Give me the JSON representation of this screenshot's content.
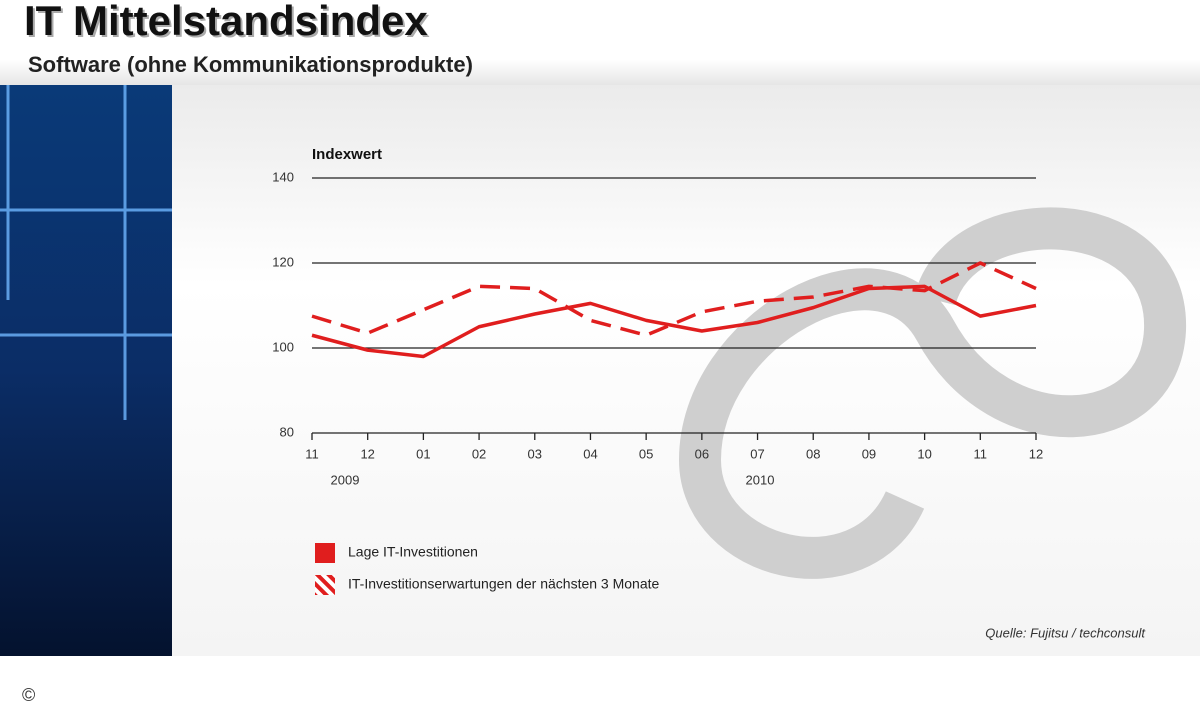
{
  "header": {
    "title": "IT Mittelstandsindex",
    "subtitle": "Software (ohne Kommunikationsprodukte)",
    "copyright": "©"
  },
  "chart_data": {
    "type": "line",
    "y_label": "Indexwert",
    "categories": [
      "11",
      "12",
      "01",
      "02",
      "03",
      "04",
      "05",
      "06",
      "07",
      "08",
      "09",
      "10",
      "11",
      "12"
    ],
    "year_labels": [
      "2009",
      "2010"
    ],
    "series": [
      {
        "name": "Lage IT-Investitionen",
        "color": "#e01e1e",
        "style": "solid",
        "values": [
          103,
          99.5,
          98,
          105,
          108,
          110.5,
          106.5,
          104,
          106,
          109.5,
          114,
          114.5,
          107.5,
          110
        ]
      },
      {
        "name": "IT-Investitionserwartungen der nächsten 3 Monate",
        "color": "#e01e1e",
        "style": "dashed",
        "values": [
          107.5,
          103.5,
          109,
          114.5,
          114,
          106.5,
          103,
          108.5,
          111,
          112,
          114.5,
          113.5,
          120,
          114
        ]
      }
    ],
    "ylim": [
      80,
      140
    ],
    "yticks": [
      80,
      100,
      120,
      140
    ],
    "grid": true,
    "source": "Quelle: Fujitsu / techconsult"
  }
}
